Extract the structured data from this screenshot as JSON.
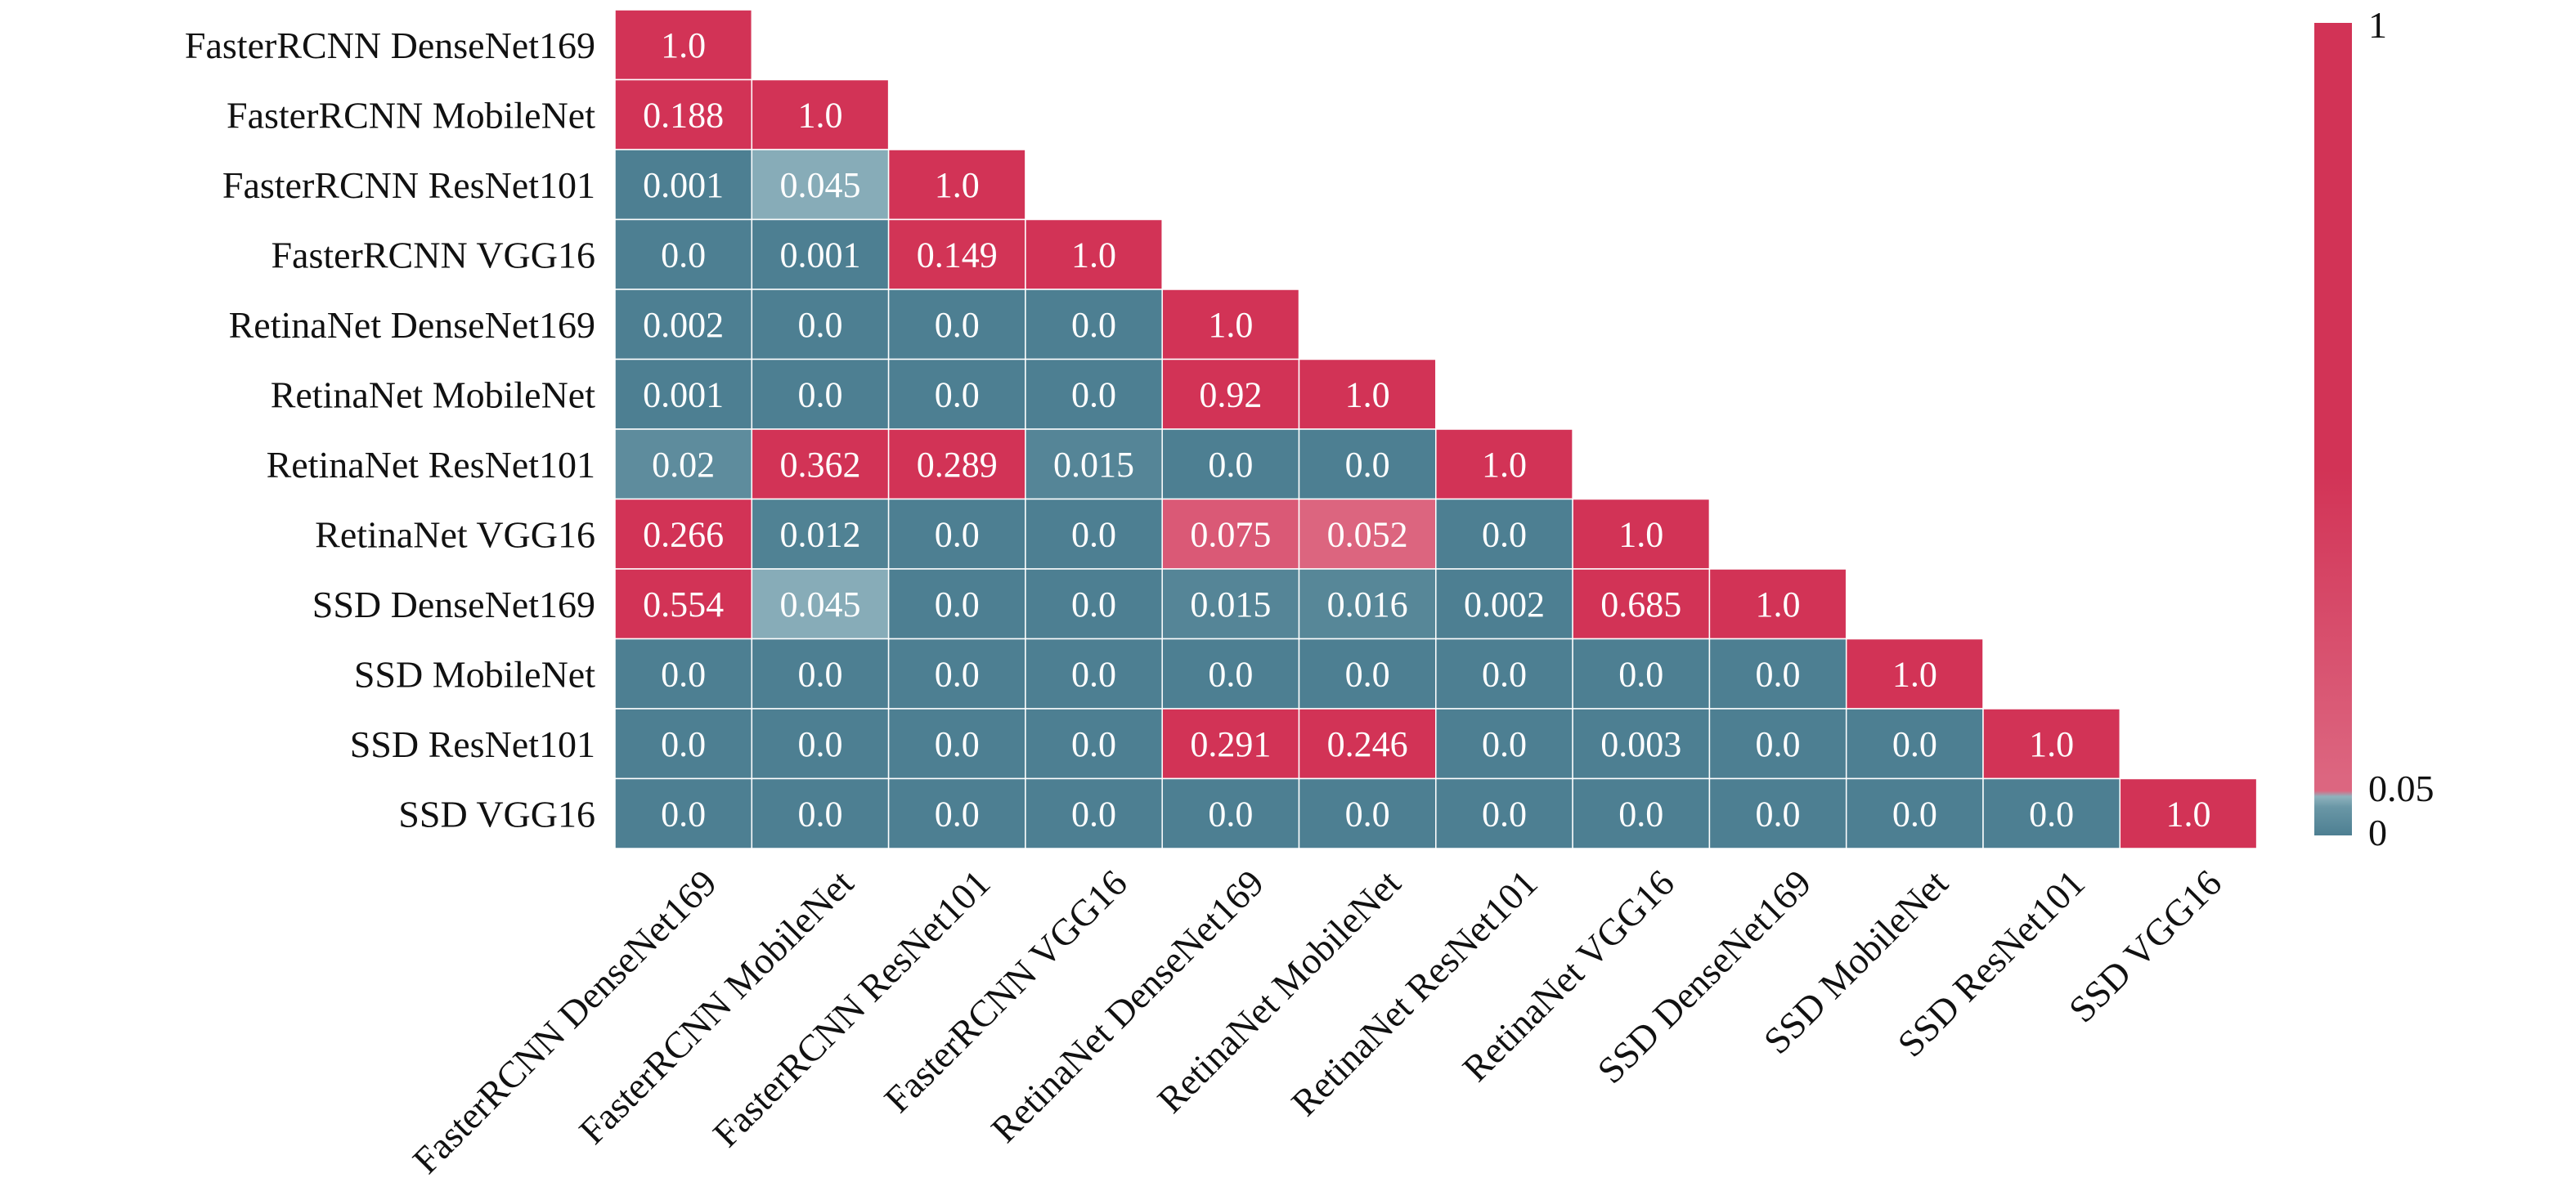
{
  "chart_data": {
    "type": "heatmap",
    "title": "",
    "xlabel": "",
    "ylabel": "",
    "row_labels": [
      "FasterRCNN DenseNet169",
      "FasterRCNN MobileNet",
      "FasterRCNN ResNet101",
      "FasterRCNN VGG16",
      "RetinaNet DenseNet169",
      "RetinaNet MobileNet",
      "RetinaNet ResNet101",
      "RetinaNet VGG16",
      "SSD DenseNet169",
      "SSD MobileNet",
      "SSD ResNet101",
      "SSD VGG16"
    ],
    "col_labels": [
      "FasterRCNN DenseNet169",
      "FasterRCNN MobileNet",
      "FasterRCNN ResNet101",
      "FasterRCNN VGG16",
      "RetinaNet DenseNet169",
      "RetinaNet MobileNet",
      "RetinaNet ResNet101",
      "RetinaNet VGG16",
      "SSD DenseNet169",
      "SSD MobileNet",
      "SSD ResNet101",
      "SSD VGG16"
    ],
    "values": [
      [
        "1.0"
      ],
      [
        "0.188",
        "1.0"
      ],
      [
        "0.001",
        "0.045",
        "1.0"
      ],
      [
        "0.0",
        "0.001",
        "0.149",
        "1.0"
      ],
      [
        "0.002",
        "0.0",
        "0.0",
        "0.0",
        "1.0"
      ],
      [
        "0.001",
        "0.0",
        "0.0",
        "0.0",
        "0.92",
        "1.0"
      ],
      [
        "0.02",
        "0.362",
        "0.289",
        "0.015",
        "0.0",
        "0.0",
        "1.0"
      ],
      [
        "0.266",
        "0.012",
        "0.0",
        "0.0",
        "0.075",
        "0.052",
        "0.0",
        "1.0"
      ],
      [
        "0.554",
        "0.045",
        "0.0",
        "0.0",
        "0.015",
        "0.016",
        "0.002",
        "0.685",
        "1.0"
      ],
      [
        "0.0",
        "0.0",
        "0.0",
        "0.0",
        "0.0",
        "0.0",
        "0.0",
        "0.0",
        "0.0",
        "1.0"
      ],
      [
        "0.0",
        "0.0",
        "0.0",
        "0.0",
        "0.291",
        "0.246",
        "0.0",
        "0.003",
        "0.0",
        "0.0",
        "1.0"
      ],
      [
        "0.0",
        "0.0",
        "0.0",
        "0.0",
        "0.0",
        "0.0",
        "0.0",
        "0.0",
        "0.0",
        "0.0",
        "0.0",
        "1.0"
      ]
    ],
    "mask": "upper-triangle",
    "colorbar": {
      "position": "right",
      "tick_labels": [
        "1",
        "0.05",
        "0"
      ],
      "tick_values": [
        1,
        0.05,
        0
      ]
    },
    "colors": {
      "low": "#4d7f92",
      "mid_low": "#6a97a6",
      "threshold_band": "#8fb2bd",
      "high": "#d23356",
      "mid_high": "#dc6680"
    }
  }
}
